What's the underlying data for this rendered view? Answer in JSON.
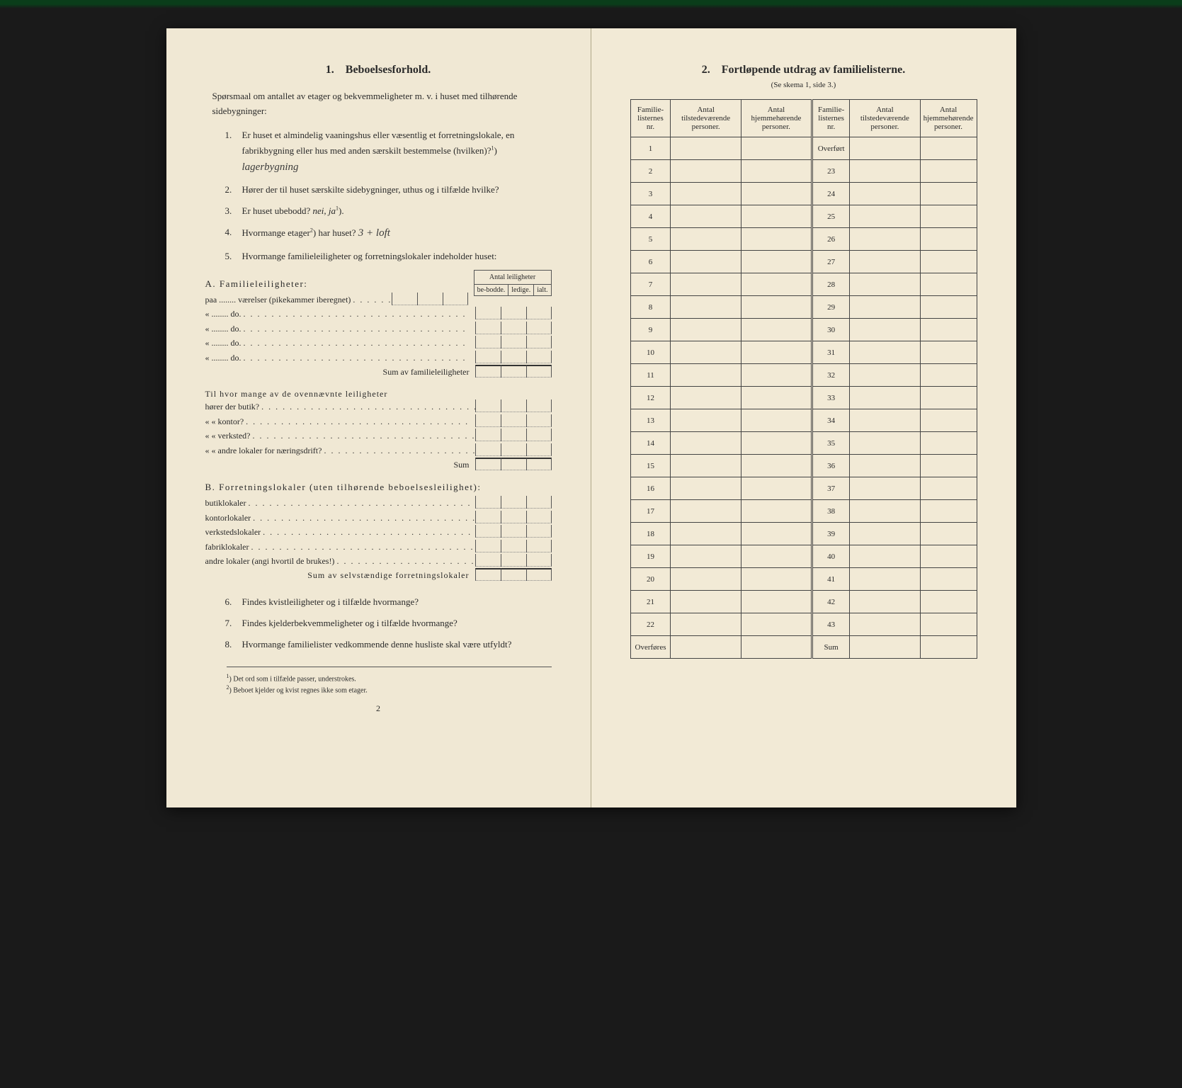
{
  "colors": {
    "page_bg": "#f0e8d4",
    "page_bg_right": "#f2ead6",
    "text": "#2a2a2a",
    "border": "#444",
    "body_bg": "#1a1a1a"
  },
  "left": {
    "section_num": "1.",
    "section_title": "Beboelsesforhold.",
    "intro": "Spørsmaal om antallet av etager og bekvemmeligheter m. v. i huset med tilhørende sidebygninger:",
    "questions": [
      {
        "n": "1.",
        "text": "Er huset et almindelig vaaningshus eller væsentlig et forretningslokale, en fabrikbygning eller hus med anden særskilt bestemmelse (hvilken)?",
        "sup": "1",
        "answer": "lagerbygning"
      },
      {
        "n": "2.",
        "text": "Hører der til huset særskilte sidebygninger, uthus og i tilfælde hvilke?",
        "answer": ""
      },
      {
        "n": "3.",
        "text": "Er huset ubebodd?",
        "options": "nei, ja",
        "sup": "1"
      },
      {
        "n": "4.",
        "text": "Hvormange etager",
        "sup": "2",
        "text2": " har huset?",
        "answer": "3 + loft"
      },
      {
        "n": "5.",
        "text": "Hvormange familieleiligheter og forretningslokaler indeholder huset:"
      }
    ],
    "mini_table": {
      "header": "Antal leiligheter",
      "cols": [
        "be-bodde.",
        "ledige.",
        "ialt."
      ]
    },
    "section_a": {
      "label": "A. Familieleiligheter:",
      "rows": [
        "paa ........ værelser (pikekammer iberegnet)",
        "« ........ do.",
        "« ........ do.",
        "« ........ do.",
        "« ........ do."
      ],
      "sum": "Sum av familieleiligheter"
    },
    "section_mid": {
      "intro": "Til hvor mange av de ovennævnte leiligheter",
      "rows": [
        "hører der butik?",
        "« « kontor?",
        "« « verksted?",
        "« « andre lokaler for næringsdrift?"
      ],
      "sum": "Sum"
    },
    "section_b": {
      "label": "B. Forretningslokaler (uten tilhørende beboelsesleilighet):",
      "rows": [
        "butiklokaler",
        "kontorlokaler",
        "verkstedslokaler",
        "fabriklokaler",
        "andre lokaler (angi hvortil de brukes!)"
      ],
      "sum": "Sum av selvstændige forretningslokaler"
    },
    "questions_bottom": [
      {
        "n": "6.",
        "text": "Findes kvistleiligheter og i tilfælde hvormange?"
      },
      {
        "n": "7.",
        "text": "Findes kjelderbekvemmeligheter og i tilfælde hvormange?"
      },
      {
        "n": "8.",
        "text": "Hvormange familielister vedkommende denne husliste skal være utfyldt?"
      }
    ],
    "footnotes": [
      {
        "n": "1",
        "text": "Det ord som i tilfælde passer, understrokes."
      },
      {
        "n": "2",
        "text": "Beboet kjelder og kvist regnes ikke som etager."
      }
    ],
    "page_num": "2"
  },
  "right": {
    "section_num": "2.",
    "section_title": "Fortløpende utdrag av familielisterne.",
    "subtitle": "(Se skema 1, side 3.)",
    "headers": {
      "col1": "Familie-listernes nr.",
      "col2": "Antal tilstedeværende personer.",
      "col3": "Antal hjemmehørende personer."
    },
    "left_rows": [
      "1",
      "2",
      "3",
      "4",
      "5",
      "6",
      "7",
      "8",
      "9",
      "10",
      "11",
      "12",
      "13",
      "14",
      "15",
      "16",
      "17",
      "18",
      "19",
      "20",
      "21",
      "22",
      "Overføres"
    ],
    "right_rows": [
      "Overført",
      "23",
      "24",
      "25",
      "26",
      "27",
      "28",
      "29",
      "30",
      "31",
      "32",
      "33",
      "34",
      "35",
      "36",
      "37",
      "38",
      "39",
      "40",
      "41",
      "42",
      "43",
      "Sum"
    ]
  }
}
